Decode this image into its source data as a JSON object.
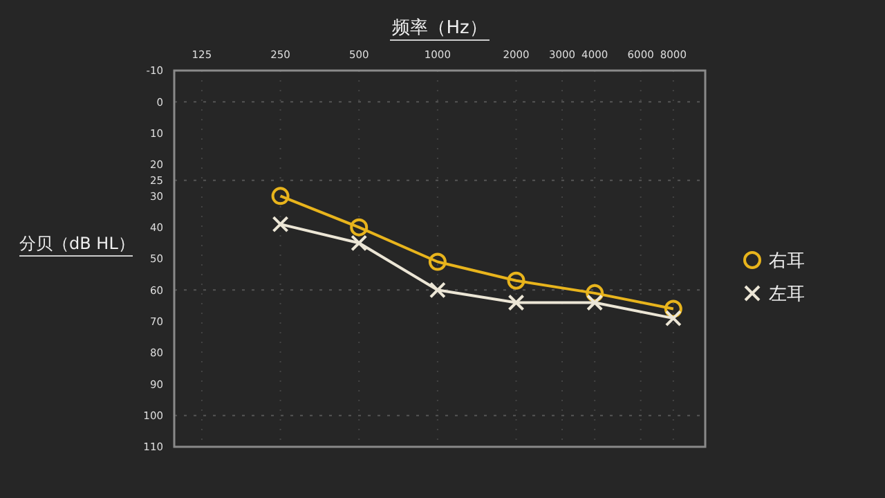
{
  "chart_data": {
    "type": "line",
    "xlabel": "频率（Hz）",
    "ylabel": "分贝（dB HL）",
    "log": "x",
    "xlim": [
      98,
      10600
    ],
    "xticks": [
      125,
      250,
      500,
      1000,
      2000,
      3000,
      4000,
      6000,
      8000
    ],
    "ylim": [
      110,
      -10
    ],
    "yticks": [
      -10,
      0,
      10,
      20,
      25,
      30,
      40,
      50,
      60,
      70,
      80,
      90,
      100,
      110
    ],
    "grid": "x",
    "legend": "right",
    "ref_lines": [
      {
        "axis": "y",
        "value": 0,
        "line_style": "dotted"
      },
      {
        "axis": "y",
        "value": 25,
        "line_style": "dotted"
      },
      {
        "axis": "y",
        "value": 60,
        "line_style": "dotted"
      },
      {
        "axis": "y",
        "value": 100,
        "line_style": "dotted"
      }
    ],
    "series": [
      {
        "name": "右耳",
        "color": "#e8b41c",
        "marker": "circle",
        "x": [
          250,
          500,
          1000,
          2000,
          4000,
          8000
        ],
        "values": [
          30,
          40,
          51,
          57,
          61,
          66
        ]
      },
      {
        "name": "左耳",
        "color": "#ece6d6",
        "marker": "cross",
        "x": [
          250,
          500,
          1000,
          2000,
          4000,
          8000
        ],
        "values": [
          39,
          45,
          60,
          64,
          64,
          69
        ]
      }
    ]
  }
}
